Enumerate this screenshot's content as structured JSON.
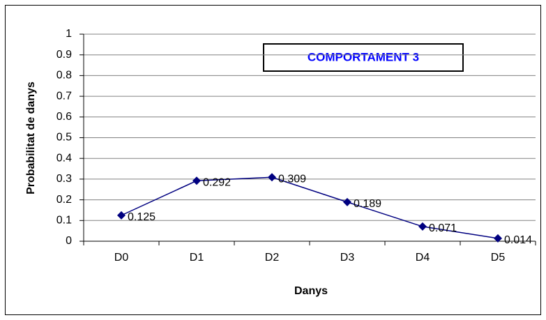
{
  "chart_data": {
    "type": "line",
    "title": "COMPORTAMENT 3",
    "categories": [
      "D0",
      "D1",
      "D2",
      "D3",
      "D4",
      "D5"
    ],
    "series": [
      {
        "name": "COMPORTAMENT 3",
        "color": "#000080",
        "values": [
          0.125,
          0.292,
          0.309,
          0.189,
          0.071,
          0.014
        ]
      }
    ],
    "xlabel": "Danys",
    "ylabel": "Probabilitat de danys",
    "ylim": [
      0,
      1
    ],
    "yticks": [
      0,
      0.1,
      0.2,
      0.3,
      0.4,
      0.5,
      0.6,
      0.7,
      0.8,
      0.9,
      1
    ],
    "grid": true
  }
}
